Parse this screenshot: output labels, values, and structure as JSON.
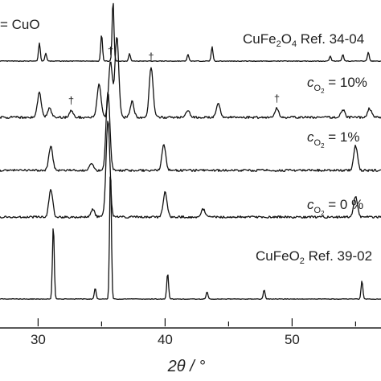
{
  "chart_data": {
    "type": "line",
    "xlabel": "2θ / °",
    "x_ticks": [
      "30",
      "40",
      "50"
    ],
    "xlim": [
      27,
      57
    ],
    "legend_fragment": "= CuO",
    "dagger": "†",
    "series": [
      {
        "name": "CuFe2O4 Ref. 34-04",
        "kind": "reference",
        "peaks": [
          [
            30.1,
            0.28
          ],
          [
            30.6,
            0.12
          ],
          [
            35.0,
            0.42
          ],
          [
            35.9,
            0.95
          ],
          [
            37.2,
            0.12
          ],
          [
            41.8,
            0.1
          ],
          [
            43.7,
            0.22
          ],
          [
            53.0,
            0.08
          ],
          [
            54.0,
            0.1
          ],
          [
            56.0,
            0.14
          ]
        ]
      },
      {
        "name": "cO2 = 10%",
        "label_parts": {
          "main": "c",
          "sub": "O",
          "sub2": "2",
          "tail": " = 10%"
        },
        "kind": "measured",
        "peaks": [
          [
            30.1,
            0.22
          ],
          [
            30.9,
            0.08
          ],
          [
            32.6,
            0.06
          ],
          [
            34.8,
            0.3
          ],
          [
            35.7,
            0.5
          ],
          [
            36.2,
            0.72
          ],
          [
            37.4,
            0.14
          ],
          [
            38.9,
            0.45
          ],
          [
            41.8,
            0.06
          ],
          [
            44.2,
            0.12
          ],
          [
            48.8,
            0.08
          ],
          [
            54.0,
            0.07
          ],
          [
            56.1,
            0.08
          ]
        ],
        "dagger_positions": [
          32.6,
          35.7,
          38.9,
          48.8
        ]
      },
      {
        "name": "cO2 = 1%",
        "label_parts": {
          "main": "c",
          "sub": "O",
          "sub2": "2",
          "tail": " = 1%"
        },
        "kind": "measured",
        "peaks": [
          [
            31.0,
            0.18
          ],
          [
            34.2,
            0.05
          ],
          [
            35.5,
            0.58
          ],
          [
            39.9,
            0.19
          ],
          [
            55.0,
            0.18
          ]
        ]
      },
      {
        "name": "cO2 = 0 %",
        "label_parts": {
          "main": "c",
          "sub": "O",
          "sub2": "2",
          "tail": " = 0 %"
        },
        "kind": "measured",
        "peaks": [
          [
            31.0,
            0.18
          ],
          [
            34.3,
            0.05
          ],
          [
            35.5,
            0.62
          ],
          [
            40.0,
            0.16
          ],
          [
            43.0,
            0.05
          ],
          [
            55.0,
            0.13
          ]
        ]
      },
      {
        "name": "CuFeO2 Ref. 39-02",
        "kind": "reference",
        "peaks": [
          [
            31.2,
            0.4
          ],
          [
            34.5,
            0.06
          ],
          [
            35.7,
            0.72
          ],
          [
            40.2,
            0.14
          ],
          [
            43.3,
            0.04
          ],
          [
            47.8,
            0.05
          ],
          [
            55.5,
            0.1
          ]
        ]
      }
    ]
  },
  "labels": {
    "ref1": {
      "main": "CuFe",
      "sub1": "2",
      "mid": "O",
      "sub2": "4",
      "tail": " Ref. 34-04"
    },
    "ref2": {
      "main": "CuFeO",
      "sub1": "2",
      "tail": " Ref. 39-02"
    }
  }
}
